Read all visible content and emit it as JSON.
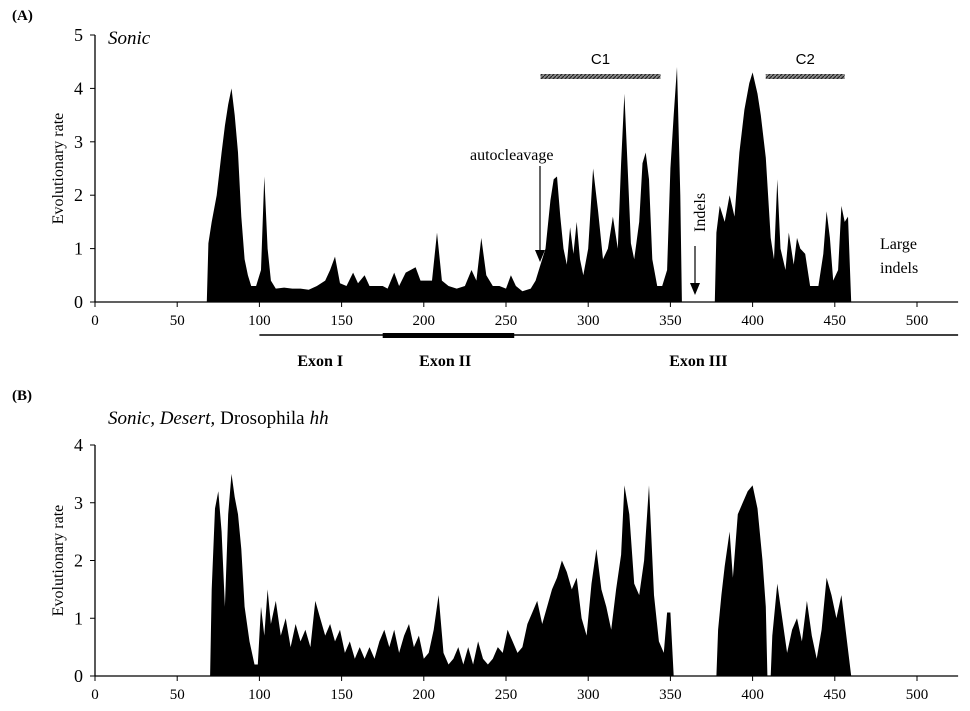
{
  "panel_a_label": "(A)",
  "panel_b_label": "(B)",
  "chart_data": [
    {
      "type": "area",
      "title": "Sonic",
      "y_label": "Evolutionary rate",
      "color": "#000000",
      "xlim": [
        0,
        525
      ],
      "xticks": [
        0,
        50,
        100,
        150,
        200,
        250,
        300,
        350,
        400,
        450,
        500
      ],
      "ylim": [
        0,
        5
      ],
      "yticks": [
        0,
        1,
        2,
        3,
        4,
        5
      ],
      "x": [
        68,
        69,
        71,
        74,
        77,
        79,
        81,
        83,
        85,
        87,
        89,
        91,
        93,
        95,
        98,
        101,
        103,
        105,
        107,
        110,
        115,
        120,
        125,
        130,
        135,
        140,
        143,
        146,
        149,
        153,
        157,
        160,
        164,
        167,
        171,
        175,
        178,
        182,
        185,
        189,
        192,
        195,
        198,
        201,
        205,
        208,
        211,
        215,
        220,
        225,
        229,
        232,
        235,
        238,
        242,
        246,
        250,
        253,
        256,
        260,
        265,
        268,
        271,
        274,
        277,
        279,
        281,
        283,
        285,
        287,
        289,
        291,
        293,
        295,
        297,
        300,
        303,
        306,
        309,
        312,
        315,
        318,
        320,
        322,
        324,
        326,
        328,
        331,
        333,
        335,
        337,
        339,
        342,
        345,
        348,
        350,
        352,
        354,
        356,
        357,
        367,
        377,
        378,
        380,
        383,
        386,
        389,
        392,
        395,
        398,
        400,
        403,
        405,
        408,
        411,
        413,
        415,
        417,
        420,
        422,
        425,
        427,
        429,
        432,
        435,
        440,
        443,
        445,
        447,
        449,
        452,
        454,
        456,
        458,
        460
      ],
      "values": [
        0,
        1.1,
        1.5,
        2.0,
        2.8,
        3.3,
        3.7,
        4.0,
        3.5,
        2.8,
        1.6,
        0.8,
        0.5,
        0.3,
        0.3,
        0.6,
        2.35,
        1.0,
        0.4,
        0.25,
        0.27,
        0.25,
        0.25,
        0.23,
        0.3,
        0.4,
        0.6,
        0.85,
        0.35,
        0.3,
        0.55,
        0.35,
        0.5,
        0.3,
        0.3,
        0.3,
        0.25,
        0.55,
        0.3,
        0.55,
        0.6,
        0.65,
        0.4,
        0.4,
        0.4,
        1.3,
        0.4,
        0.3,
        0.25,
        0.3,
        0.6,
        0.4,
        1.2,
        0.5,
        0.3,
        0.3,
        0.25,
        0.5,
        0.3,
        0.2,
        0.25,
        0.4,
        0.7,
        1.0,
        1.9,
        2.3,
        2.35,
        1.6,
        1.0,
        0.7,
        1.4,
        0.9,
        1.5,
        0.8,
        0.5,
        1.0,
        2.5,
        1.7,
        0.8,
        1.0,
        1.6,
        1.0,
        2.6,
        3.9,
        2.5,
        1.1,
        0.8,
        1.5,
        2.6,
        2.8,
        2.3,
        0.8,
        0.3,
        0.3,
        0.6,
        2.5,
        3.5,
        4.4,
        2.0,
        0,
        null,
        0,
        1.3,
        1.8,
        1.5,
        2.0,
        1.6,
        2.8,
        3.6,
        4.1,
        4.3,
        3.9,
        3.5,
        2.7,
        1.2,
        0.8,
        2.3,
        1.0,
        0.6,
        1.3,
        0.7,
        1.2,
        1.0,
        0.9,
        0.3,
        0.3,
        0.9,
        1.7,
        1.2,
        0.4,
        0.6,
        1.8,
        1.5,
        1.6,
        0
      ],
      "regions": [
        {
          "label": "C1",
          "start": 271,
          "end": 344
        },
        {
          "label": "C2",
          "start": 408,
          "end": 456
        }
      ],
      "exon_line": [
        100,
        525
      ],
      "exons": [
        {
          "label": "Exon I",
          "center": 137
        },
        {
          "label": "Exon II",
          "center": 213,
          "start": 175,
          "end": 255
        },
        {
          "label": "Exon III",
          "center": 367
        }
      ],
      "annotations": {
        "autocleavage": "autocleavage",
        "indels": "Indels",
        "large_indels": [
          "Large",
          "indels"
        ]
      }
    },
    {
      "type": "area",
      "title_parts": [
        "Sonic, Desert,",
        "Drosophila",
        "hh"
      ],
      "title_italic": [
        true,
        false,
        true
      ],
      "y_label": "Evolutionary rate",
      "color": "#000000",
      "xlim": [
        0,
        525
      ],
      "xticks": [
        0,
        50,
        100,
        150,
        200,
        250,
        300,
        350,
        400,
        450,
        500
      ],
      "ylim": [
        0,
        4
      ],
      "yticks": [
        0,
        1,
        2,
        3,
        4
      ],
      "x": [
        70,
        71,
        73,
        75,
        77,
        79,
        81,
        83,
        85,
        87,
        89,
        91,
        94,
        97,
        99,
        101,
        103,
        105,
        107,
        110,
        113,
        116,
        119,
        122,
        125,
        128,
        131,
        134,
        137,
        140,
        143,
        146,
        149,
        152,
        155,
        158,
        161,
        164,
        167,
        170,
        173,
        176,
        179,
        182,
        185,
        188,
        191,
        194,
        197,
        200,
        203,
        206,
        209,
        212,
        215,
        218,
        221,
        224,
        227,
        230,
        233,
        236,
        239,
        242,
        245,
        248,
        251,
        254,
        257,
        260,
        263,
        266,
        269,
        272,
        275,
        278,
        281,
        284,
        287,
        290,
        293,
        296,
        299,
        302,
        305,
        308,
        311,
        314,
        317,
        320,
        322,
        325,
        328,
        331,
        334,
        337,
        340,
        343,
        346,
        348,
        350,
        352,
        365,
        378,
        379,
        381,
        383,
        386,
        388,
        391,
        394,
        397,
        400,
        403,
        406,
        408,
        409,
        410,
        411,
        412,
        415,
        418,
        421,
        424,
        427,
        430,
        433,
        436,
        439,
        442,
        445,
        448,
        451,
        454,
        457,
        460
      ],
      "values": [
        0,
        1.5,
        2.9,
        3.2,
        2.5,
        1.2,
        2.8,
        3.5,
        3.1,
        2.8,
        2.2,
        1.2,
        0.6,
        0.2,
        0.2,
        1.2,
        0.7,
        1.5,
        0.9,
        1.3,
        0.7,
        1.0,
        0.5,
        0.9,
        0.6,
        0.8,
        0.5,
        1.3,
        1.0,
        0.7,
        0.9,
        0.6,
        0.8,
        0.4,
        0.6,
        0.3,
        0.5,
        0.3,
        0.5,
        0.3,
        0.6,
        0.8,
        0.5,
        0.8,
        0.4,
        0.7,
        0.9,
        0.5,
        0.7,
        0.3,
        0.4,
        0.8,
        1.4,
        0.4,
        0.2,
        0.3,
        0.5,
        0.2,
        0.5,
        0.2,
        0.6,
        0.3,
        0.2,
        0.3,
        0.5,
        0.4,
        0.8,
        0.6,
        0.4,
        0.5,
        0.9,
        1.1,
        1.3,
        0.9,
        1.2,
        1.5,
        1.7,
        2.0,
        1.8,
        1.5,
        1.7,
        1.0,
        0.7,
        1.6,
        2.2,
        1.5,
        1.2,
        0.8,
        1.5,
        2.1,
        3.3,
        2.8,
        1.6,
        1.4,
        2.0,
        3.3,
        1.4,
        0.6,
        0.4,
        1.1,
        1.1,
        0,
        null,
        0,
        0.8,
        1.4,
        1.9,
        2.5,
        1.7,
        2.8,
        3.0,
        3.2,
        3.3,
        2.9,
        2.0,
        1.2,
        0,
        null,
        0,
        0.7,
        1.6,
        1.0,
        0.4,
        0.8,
        1.0,
        0.6,
        1.3,
        0.7,
        0.3,
        0.8,
        1.7,
        1.4,
        1.0,
        1.4,
        0.7,
        0
      ]
    }
  ]
}
